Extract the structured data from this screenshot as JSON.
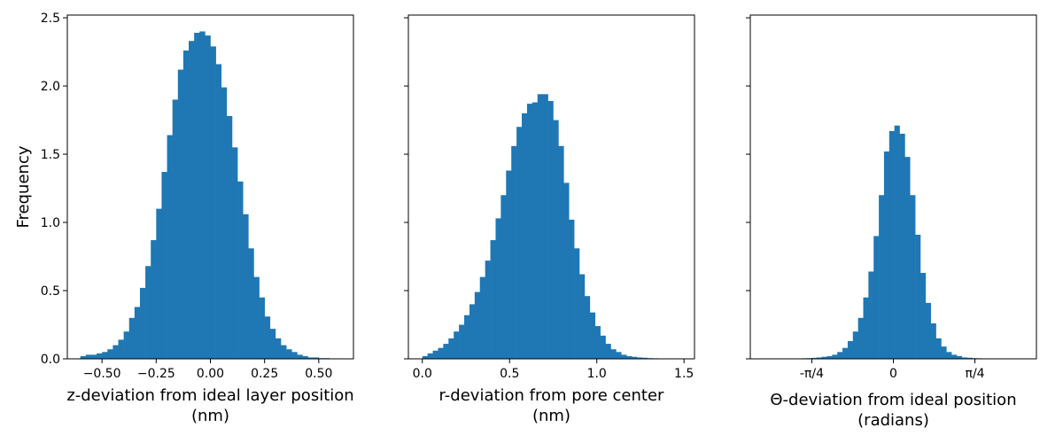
{
  "chart_data": [
    {
      "type": "bar",
      "xlabel": [
        "z-deviation from ideal layer position",
        "(nm)"
      ],
      "ylabel": "Frequency",
      "xlim": [
        -0.66,
        0.66
      ],
      "ylim": [
        0,
        2.52
      ],
      "xticks": [
        {
          "v": -0.5,
          "label": "−0.50"
        },
        {
          "v": -0.25,
          "label": "−0.25"
        },
        {
          "v": 0.0,
          "label": "0.00"
        },
        {
          "v": 0.25,
          "label": "0.25"
        },
        {
          "v": 0.5,
          "label": "0.50"
        }
      ],
      "yticks": [
        {
          "v": 0,
          "label": "0.0"
        },
        {
          "v": 0.5,
          "label": "0.5"
        },
        {
          "v": 1.0,
          "label": "1.0"
        },
        {
          "v": 1.5,
          "label": "1.5"
        },
        {
          "v": 2.0,
          "label": "2.0"
        },
        {
          "v": 2.5,
          "label": "2.5"
        }
      ],
      "color": "#1f77b4",
      "bin_edges": [
        -0.6,
        -0.575,
        -0.55,
        -0.525,
        -0.5,
        -0.475,
        -0.45,
        -0.425,
        -0.4,
        -0.375,
        -0.35,
        -0.325,
        -0.3,
        -0.275,
        -0.25,
        -0.225,
        -0.2,
        -0.175,
        -0.15,
        -0.125,
        -0.1,
        -0.075,
        -0.05,
        -0.025,
        0.0,
        0.025,
        0.05,
        0.075,
        0.1,
        0.125,
        0.15,
        0.175,
        0.2,
        0.225,
        0.25,
        0.275,
        0.3,
        0.325,
        0.35,
        0.375,
        0.4,
        0.425,
        0.45,
        0.475,
        0.5,
        0.525,
        0.55,
        0.575,
        0.6
      ],
      "values": [
        0.02,
        0.03,
        0.03,
        0.04,
        0.05,
        0.07,
        0.1,
        0.14,
        0.2,
        0.3,
        0.38,
        0.52,
        0.68,
        0.87,
        1.1,
        1.37,
        1.64,
        1.9,
        2.12,
        2.26,
        2.33,
        2.39,
        2.4,
        2.37,
        2.29,
        2.16,
        1.99,
        1.78,
        1.55,
        1.3,
        1.06,
        0.81,
        0.6,
        0.45,
        0.31,
        0.22,
        0.15,
        0.1,
        0.07,
        0.05,
        0.03,
        0.02,
        0.01,
        0.01,
        0.005,
        0.005,
        0.003,
        0.002
      ]
    },
    {
      "type": "bar",
      "xlabel": [
        "r-deviation from pore center",
        "(nm)"
      ],
      "ylabel": "",
      "xlim": [
        -0.08,
        1.56
      ],
      "ylim": [
        0,
        2.52
      ],
      "xticks": [
        {
          "v": 0.0,
          "label": "0.0"
        },
        {
          "v": 0.5,
          "label": "0.5"
        },
        {
          "v": 1.0,
          "label": "1.0"
        },
        {
          "v": 1.5,
          "label": "1.5"
        }
      ],
      "yticks": [
        {
          "v": 0,
          "label": ""
        },
        {
          "v": 0.5,
          "label": ""
        },
        {
          "v": 1.0,
          "label": ""
        },
        {
          "v": 1.5,
          "label": ""
        },
        {
          "v": 2.0,
          "label": ""
        },
        {
          "v": 2.5,
          "label": ""
        }
      ],
      "color": "#1f77b4",
      "bin_edges": [
        0.0,
        0.03,
        0.06,
        0.09,
        0.12,
        0.15,
        0.18,
        0.21,
        0.24,
        0.27,
        0.3,
        0.33,
        0.36,
        0.39,
        0.42,
        0.45,
        0.48,
        0.51,
        0.54,
        0.57,
        0.6,
        0.63,
        0.66,
        0.69,
        0.72,
        0.75,
        0.78,
        0.81,
        0.84,
        0.87,
        0.9,
        0.93,
        0.96,
        0.99,
        1.02,
        1.05,
        1.08,
        1.11,
        1.14,
        1.17,
        1.2,
        1.23,
        1.26,
        1.29,
        1.32,
        1.35,
        1.38,
        1.41,
        1.44,
        1.47
      ],
      "values": [
        0.02,
        0.04,
        0.06,
        0.08,
        0.11,
        0.15,
        0.2,
        0.25,
        0.32,
        0.4,
        0.49,
        0.6,
        0.72,
        0.87,
        1.03,
        1.2,
        1.38,
        1.56,
        1.7,
        1.8,
        1.87,
        1.88,
        1.94,
        1.94,
        1.89,
        1.75,
        1.56,
        1.29,
        1.02,
        0.81,
        0.62,
        0.46,
        0.34,
        0.24,
        0.17,
        0.11,
        0.07,
        0.05,
        0.03,
        0.02,
        0.015,
        0.01,
        0.008,
        0.005,
        0.004,
        0.003,
        0.002,
        0.001,
        0.001
      ]
    },
    {
      "type": "bar",
      "xlabel": [
        "Θ-deviation from ideal position",
        "(radians)"
      ],
      "ylabel": "",
      "xlim": [
        -1.378,
        1.378
      ],
      "ylim": [
        0,
        2.52
      ],
      "xticks": [
        {
          "v": -0.785398,
          "label": "-π/4"
        },
        {
          "v": 0.0,
          "label": "0"
        },
        {
          "v": 0.785398,
          "label": "π/4"
        }
      ],
      "yticks": [
        {
          "v": 0,
          "label": ""
        },
        {
          "v": 0.5,
          "label": ""
        },
        {
          "v": 1.0,
          "label": ""
        },
        {
          "v": 1.5,
          "label": ""
        },
        {
          "v": 2.0,
          "label": ""
        },
        {
          "v": 2.5,
          "label": ""
        }
      ],
      "color": "#1f77b4",
      "bin_edges": [
        -0.94,
        -0.89,
        -0.84,
        -0.79,
        -0.74,
        -0.69,
        -0.64,
        -0.59,
        -0.54,
        -0.49,
        -0.44,
        -0.39,
        -0.34,
        -0.29,
        -0.24,
        -0.19,
        -0.14,
        -0.09,
        -0.04,
        0.01,
        0.06,
        0.11,
        0.16,
        0.21,
        0.26,
        0.31,
        0.36,
        0.41,
        0.46,
        0.51,
        0.56,
        0.61,
        0.66,
        0.71,
        0.76,
        0.81,
        0.86,
        0.91,
        0.96,
        1.01,
        1.06,
        1.11,
        1.16,
        1.21,
        1.26
      ],
      "values": [
        0.003,
        0.004,
        0.005,
        0.007,
        0.01,
        0.015,
        0.02,
        0.03,
        0.05,
        0.08,
        0.13,
        0.2,
        0.3,
        0.45,
        0.64,
        0.9,
        1.2,
        1.52,
        1.67,
        1.71,
        1.65,
        1.48,
        1.2,
        0.91,
        0.63,
        0.41,
        0.26,
        0.15,
        0.09,
        0.05,
        0.03,
        0.02,
        0.01,
        0.008,
        0.005,
        0.004,
        0.003,
        0.002,
        0.002,
        0.001,
        0.001,
        0.001,
        0.0005,
        0.0005
      ]
    }
  ]
}
